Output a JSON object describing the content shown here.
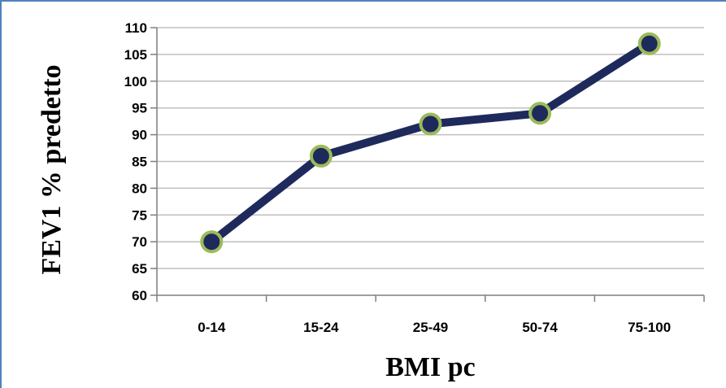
{
  "chart_data": {
    "type": "line",
    "title": "",
    "xlabel": "BMI pc",
    "ylabel": "FEV1 % predetto",
    "categories": [
      "0-14",
      "15-24",
      "25-49",
      "50-74",
      "75-100"
    ],
    "series": [
      {
        "values": [
          70,
          86,
          92,
          94,
          107
        ]
      }
    ],
    "ylim": [
      60,
      110
    ],
    "yticks": [
      60,
      65,
      70,
      75,
      80,
      85,
      90,
      95,
      100,
      105,
      110
    ],
    "grid": true,
    "legend": "none",
    "colors": {
      "line": "#1f2a5c",
      "marker_fill": "#1f2a5c",
      "marker_edge": "#9bbb59",
      "grid": "#bfbfbf",
      "frame": "#4f81bd"
    }
  }
}
